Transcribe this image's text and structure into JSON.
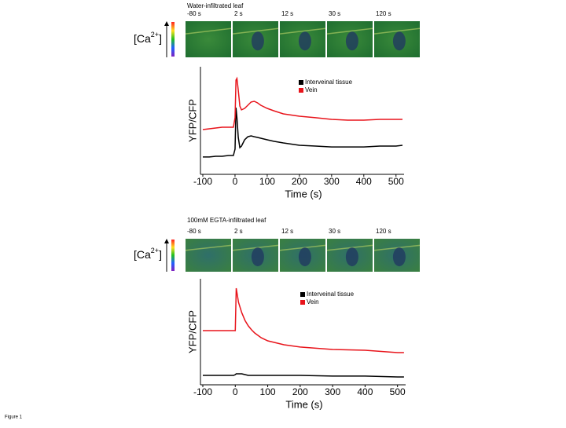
{
  "chart_data": [
    {
      "type": "line",
      "title": "Water-infiltrated leaf",
      "image_labels": [
        "-80 s",
        "2 s",
        "12 s",
        "30 s",
        "120 s"
      ],
      "ca_label": [
        "[Ca",
        "2+",
        "]"
      ],
      "xlabel": "Time (s)",
      "ylabel": "YFP/CFP",
      "x": [
        -100,
        -80,
        -60,
        -40,
        -20,
        -5,
        0,
        3,
        6,
        10,
        15,
        20,
        30,
        40,
        50,
        60,
        70,
        80,
        100,
        120,
        150,
        200,
        250,
        300,
        350,
        400,
        450,
        500,
        520
      ],
      "series": [
        {
          "name": "Interveinal tissue",
          "color": "#000000",
          "values": [
            16.1,
            16.1,
            16.8,
            16.8,
            17.5,
            17.5,
            23.4,
            62.0,
            52.6,
            34.3,
            24.8,
            26.3,
            32.1,
            35.0,
            35.8,
            35.0,
            34.3,
            33.6,
            32.1,
            30.7,
            29.2,
            27.0,
            26.3,
            25.5,
            25.5,
            25.5,
            26.3,
            26.3,
            27.0
          ]
        },
        {
          "name": "Vein",
          "color": "#e8141b",
          "values": [
            41.6,
            42.3,
            43.1,
            43.8,
            43.8,
            43.8,
            52.6,
            87.6,
            89.1,
            78.1,
            63.5,
            59.9,
            61.3,
            64.2,
            67.2,
            67.9,
            66.4,
            64.2,
            61.3,
            59.1,
            56.2,
            54.0,
            52.6,
            51.1,
            50.4,
            50.4,
            51.1,
            51.1,
            51.1
          ]
        }
      ],
      "xlim": [
        -100,
        525
      ],
      "ylim": [
        0,
        100
      ],
      "xticks": [
        -100,
        0,
        100,
        200,
        300,
        400,
        500
      ],
      "legend": "upper-right"
    },
    {
      "type": "line",
      "title": "100mM EGTA-infiltrated leaf",
      "image_labels": [
        "-80 s",
        "2 s",
        "12 s",
        "30 s",
        "120 s"
      ],
      "ca_label": [
        "[Ca",
        "2+",
        "]"
      ],
      "xlabel": "Time (s)",
      "ylabel": "YFP/CFP",
      "x": [
        -100,
        -50,
        -5,
        0,
        3,
        6,
        10,
        20,
        30,
        40,
        50,
        60,
        80,
        100,
        150,
        200,
        300,
        400,
        500,
        520
      ],
      "series": [
        {
          "name": "Interveinal tissue",
          "color": "#000000",
          "values": [
            8.9,
            8.9,
            8.9,
            9.6,
            10.4,
            10.4,
            10.4,
            10.4,
            9.6,
            8.9,
            8.9,
            8.9,
            8.9,
            8.9,
            8.9,
            8.9,
            8.2,
            8.2,
            7.4,
            7.4
          ]
        },
        {
          "name": "Vein",
          "color": "#e8141b",
          "values": [
            51.1,
            51.1,
            51.1,
            51.1,
            91.1,
            85.2,
            77.8,
            68.1,
            60.7,
            55.6,
            51.9,
            48.9,
            44.4,
            41.5,
            37.8,
            35.6,
            33.3,
            32.6,
            30.4,
            30.4
          ]
        }
      ],
      "xlim": [
        -100,
        525
      ],
      "ylim": [
        0,
        100
      ],
      "xticks": [
        -100,
        0,
        100,
        200,
        300,
        400,
        500
      ],
      "legend": "upper-right"
    }
  ],
  "footer": "Figure 1"
}
